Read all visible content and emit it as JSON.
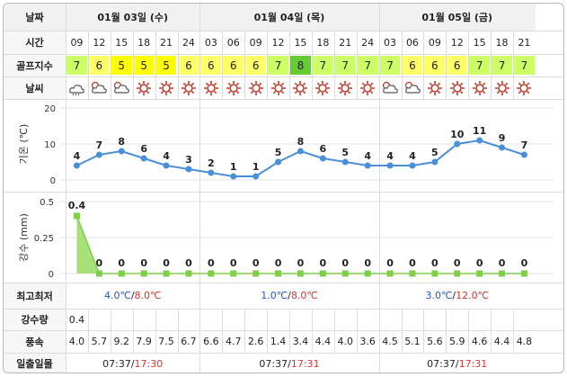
{
  "header": {
    "label_date": "날짜",
    "days": [
      "01월 03일 (수)",
      "01월 04일 (목)",
      "01월 05일 (금)"
    ]
  },
  "rows": {
    "time_label": "시간",
    "golf_label": "골프지수",
    "weather_label": "날씨",
    "temp_label": "기온 (℃)",
    "rain_label": "강수 (mm)",
    "minmax_label": "최고최저",
    "precip_label": "강수량",
    "wind_label": "풍속",
    "sun_label": "일출일몰"
  },
  "times": [
    "09",
    "12",
    "15",
    "18",
    "21",
    "24",
    "03",
    "06",
    "09",
    "12",
    "15",
    "18",
    "21",
    "24",
    "03",
    "06",
    "09",
    "12",
    "15",
    "18",
    "21"
  ],
  "golf_index": [
    "7",
    "6",
    "5",
    "5",
    "5",
    "6",
    "6",
    "6",
    "6",
    "7",
    "8",
    "7",
    "7",
    "7",
    "7",
    "6",
    "6",
    "6",
    "7",
    "7",
    "7"
  ],
  "golf_colors": {
    "5": "#ffff00",
    "6": "#ffff66",
    "7": "#ccff66",
    "8": "#66cc33"
  },
  "weather_icons": [
    "rain-cloud-icon",
    "partly-cloudy-icon",
    "partly-cloudy-icon",
    "sun-icon",
    "sun-icon",
    "sun-icon",
    "sun-icon",
    "sun-icon",
    "sun-icon",
    "sun-icon",
    "sun-icon",
    "sun-icon",
    "sun-icon",
    "sun-icon",
    "partly-cloudy-icon",
    "partly-cloudy-icon",
    "sun-icon",
    "sun-icon",
    "sun-icon",
    "sun-icon",
    "sun-icon"
  ],
  "temp_ticks": [
    "20",
    "10",
    "0"
  ],
  "rain_ticks": [
    "0.5",
    "0.25",
    "0"
  ],
  "chart_data": [
    {
      "type": "line",
      "ylabel": "기온 (℃)",
      "ylim": [
        0,
        20
      ],
      "x": [
        "09",
        "12",
        "15",
        "18",
        "21",
        "24",
        "03",
        "06",
        "09",
        "12",
        "15",
        "18",
        "21",
        "24",
        "03",
        "06",
        "09",
        "12",
        "15",
        "18",
        "21"
      ],
      "values": [
        4,
        7,
        8,
        6,
        4,
        3,
        2,
        1,
        1,
        5,
        8,
        6,
        5,
        4,
        4,
        4,
        5,
        10,
        11,
        9,
        7
      ],
      "labels": [
        "4",
        "7",
        "8",
        "6",
        "4",
        "3",
        "2",
        "1",
        "1",
        "5",
        "8",
        "6",
        "5",
        "4",
        "4",
        "4",
        "5",
        "10",
        "11",
        "9",
        "7"
      ],
      "color": "#4a90d9"
    },
    {
      "type": "area",
      "ylabel": "강수 (mm)",
      "ylim": [
        0,
        0.5
      ],
      "x": [
        "09",
        "12",
        "15",
        "18",
        "21",
        "24",
        "03",
        "06",
        "09",
        "12",
        "15",
        "18",
        "21",
        "24",
        "03",
        "06",
        "09",
        "12",
        "15",
        "18",
        "21"
      ],
      "values": [
        0.4,
        0,
        0,
        0,
        0,
        0,
        0,
        0,
        0,
        0,
        0,
        0,
        0,
        0,
        0,
        0,
        0,
        0,
        0,
        0,
        0
      ],
      "labels": [
        "0.4",
        "0",
        "0",
        "0",
        "0",
        "0",
        "0",
        "0",
        "0",
        "0",
        "0",
        "0",
        "0",
        "0",
        "0",
        "0",
        "0",
        "0",
        "0",
        "0",
        "0"
      ],
      "color": "#7fcf4a"
    }
  ],
  "minmax": [
    {
      "min": "4.0℃",
      "sep": "/",
      "max": "8.0℃"
    },
    {
      "min": "1.0℃",
      "sep": "/",
      "max": "8.0℃"
    },
    {
      "min": "3.0℃",
      "sep": "/",
      "max": "12.0℃"
    }
  ],
  "precip": [
    "0.4",
    "",
    "",
    "",
    "",
    "",
    "",
    "",
    "",
    "",
    "",
    "",
    "",
    "",
    "",
    "",
    "",
    "",
    "",
    "",
    ""
  ],
  "wind": [
    "4.0",
    "5.7",
    "9.2",
    "7.9",
    "7.5",
    "6.7",
    "6.6",
    "4.7",
    "2.6",
    "1.4",
    "3.4",
    "4.4",
    "4.0",
    "3.6",
    "4.5",
    "5.1",
    "5.6",
    "5.9",
    "4.6",
    "4.4",
    "4.8"
  ],
  "sun": [
    {
      "rise": "07:37",
      "sep": "/",
      "set": "17:30"
    },
    {
      "rise": "07:37",
      "sep": "/",
      "set": "17:31"
    },
    {
      "rise": "07:37",
      "sep": "/",
      "set": "17:31"
    }
  ]
}
